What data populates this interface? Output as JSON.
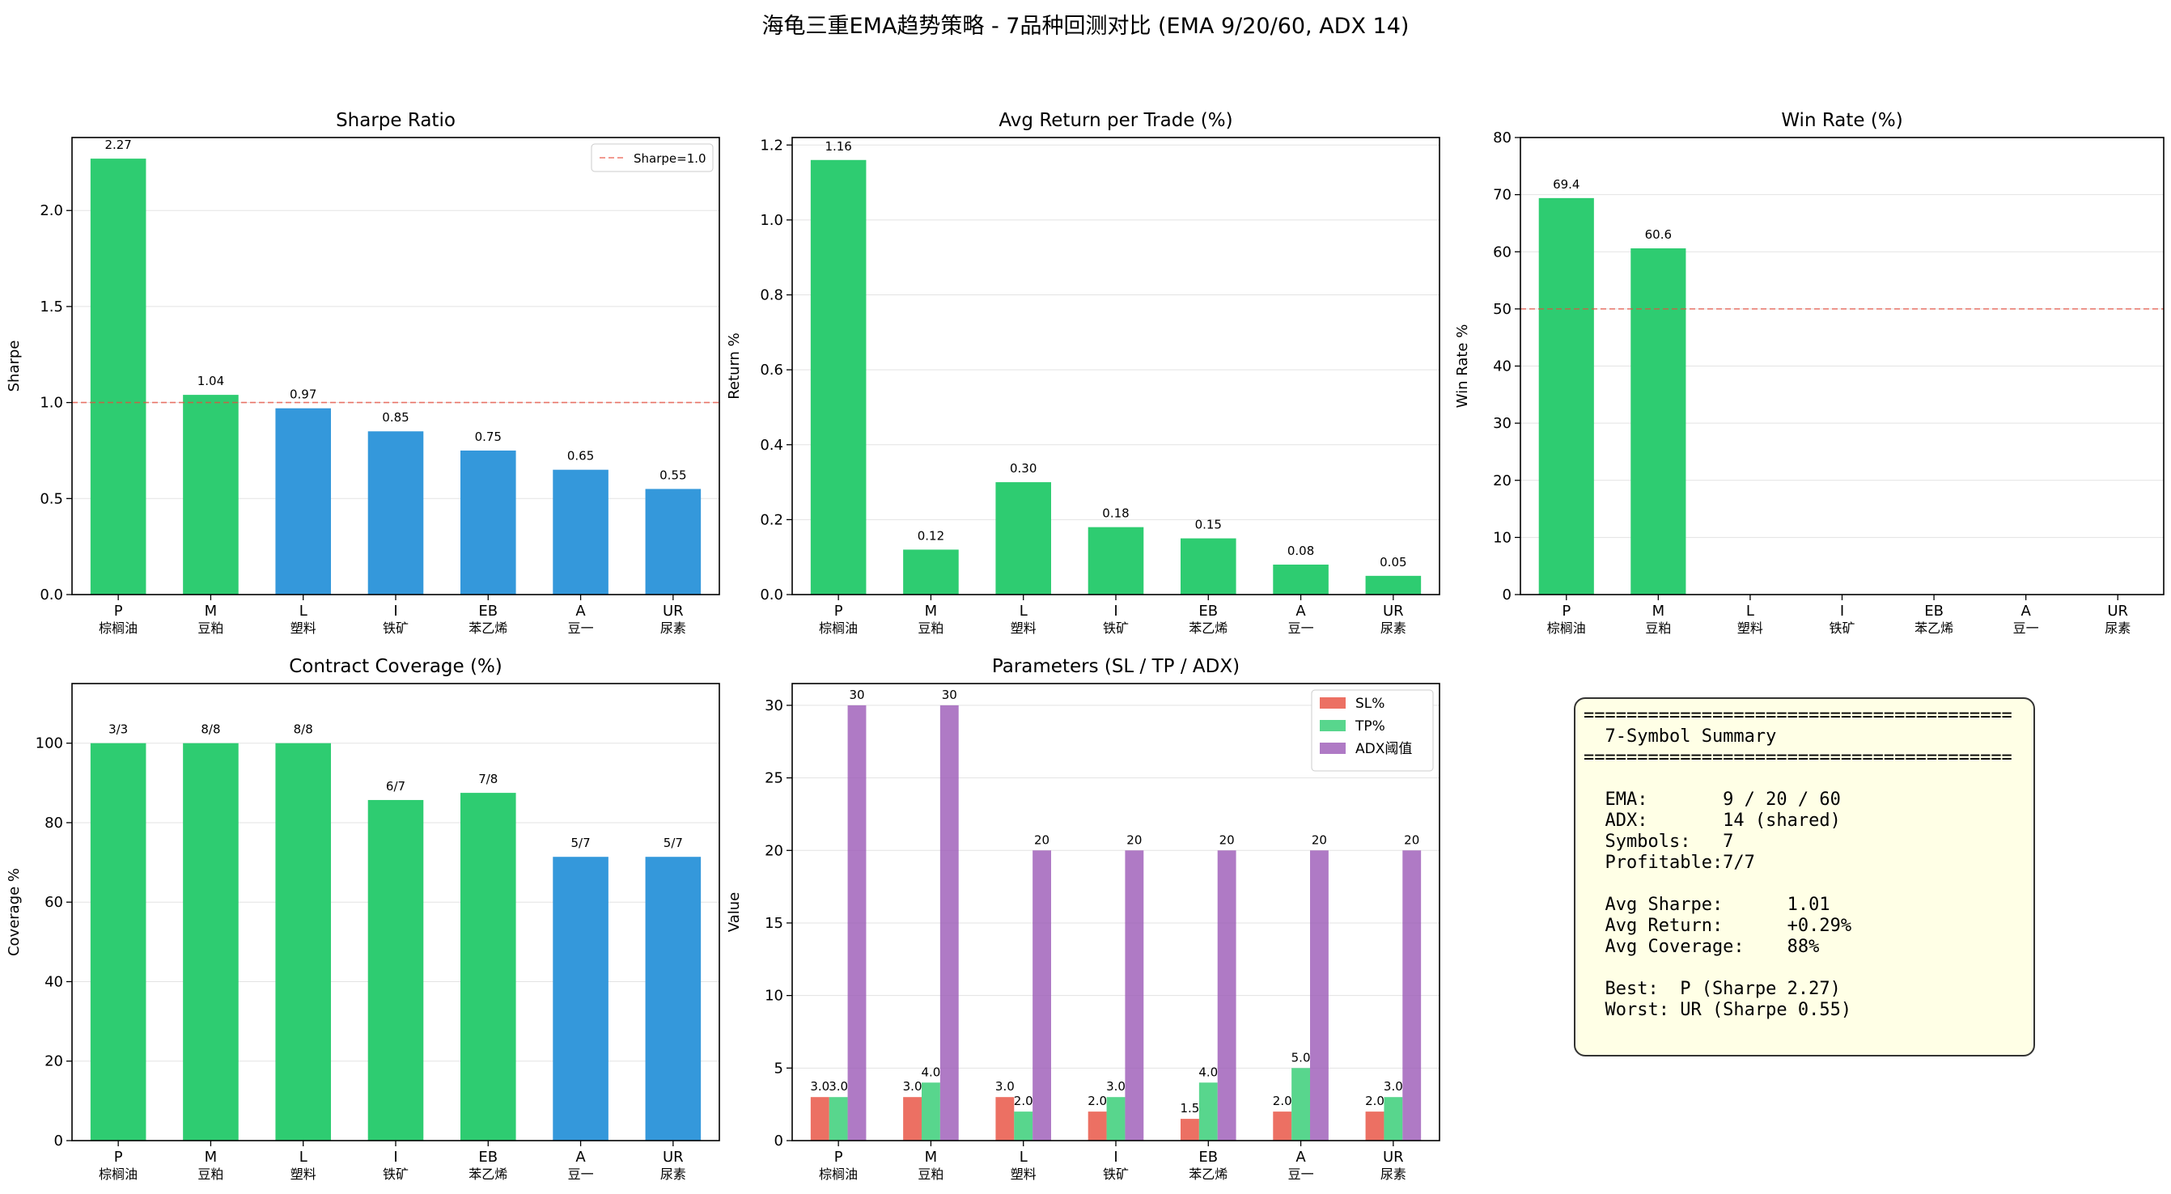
{
  "suptitle": "海龟三重EMA趋势策略 - 7品种回测对比  (EMA 9/20/60, ADX 14)",
  "symbols": [
    {
      "code": "P",
      "name": "棕榈油"
    },
    {
      "code": "M",
      "name": "豆粕"
    },
    {
      "code": "L",
      "name": "塑料"
    },
    {
      "code": "I",
      "name": "铁矿"
    },
    {
      "code": "EB",
      "name": "苯乙烯"
    },
    {
      "code": "A",
      "name": "豆一"
    },
    {
      "code": "UR",
      "name": "尿素"
    }
  ],
  "colors": {
    "green": "#2ecc71",
    "blue": "#3498db",
    "sl": "#e74c3c",
    "tp": "#2ecc71",
    "adx": "#9b59b6",
    "ref": "#e74c3c"
  },
  "chart_data": [
    {
      "id": "sharpe",
      "type": "bar",
      "title": "Sharpe Ratio",
      "xlabel": "",
      "ylabel": "Sharpe",
      "categories": [
        "P",
        "M",
        "L",
        "I",
        "EB",
        "A",
        "UR"
      ],
      "values": [
        2.27,
        1.04,
        0.97,
        0.85,
        0.75,
        0.65,
        0.55
      ],
      "labels": [
        "2.27",
        "1.04",
        "0.97",
        "0.85",
        "0.75",
        "0.65",
        "0.55"
      ],
      "bar_colors": [
        "green",
        "green",
        "blue",
        "blue",
        "blue",
        "blue",
        "blue"
      ],
      "ylim": [
        0,
        2.38
      ],
      "yticks": [
        0,
        0.5,
        1.0,
        1.5,
        2.0
      ],
      "ytick_labels": [
        "0.0",
        "0.5",
        "1.0",
        "1.5",
        "2.0"
      ],
      "refline": 1.0,
      "legend": [
        {
          "label": "Sharpe=1.0",
          "kind": "line"
        }
      ],
      "legend_position": "top-right",
      "grid": "y"
    },
    {
      "id": "avgret",
      "type": "bar",
      "title": "Avg Return per Trade (%)",
      "xlabel": "",
      "ylabel": "Return %",
      "categories": [
        "P",
        "M",
        "L",
        "I",
        "EB",
        "A",
        "UR"
      ],
      "values": [
        1.16,
        0.12,
        0.3,
        0.18,
        0.15,
        0.08,
        0.05
      ],
      "labels": [
        "1.16",
        "0.12",
        "0.30",
        "0.18",
        "0.15",
        "0.08",
        "0.05"
      ],
      "bar_colors": [
        "green",
        "green",
        "green",
        "green",
        "green",
        "green",
        "green"
      ],
      "ylim": [
        0,
        1.22
      ],
      "yticks": [
        0,
        0.2,
        0.4,
        0.6,
        0.8,
        1.0,
        1.2
      ],
      "ytick_labels": [
        "0.0",
        "0.2",
        "0.4",
        "0.6",
        "0.8",
        "1.0",
        "1.2"
      ],
      "grid": "y"
    },
    {
      "id": "winrate",
      "type": "bar",
      "title": "Win Rate (%)",
      "xlabel": "",
      "ylabel": "Win Rate %",
      "categories": [
        "P",
        "M",
        "L",
        "I",
        "EB",
        "A",
        "UR"
      ],
      "values": [
        69.4,
        60.6,
        0,
        0,
        0,
        0,
        0
      ],
      "labels": [
        "69.4",
        "60.6",
        "",
        "",
        "",
        "",
        ""
      ],
      "bar_colors": [
        "green",
        "green",
        "green",
        "green",
        "green",
        "green",
        "green"
      ],
      "ylim": [
        0,
        80
      ],
      "yticks": [
        0,
        10,
        20,
        30,
        40,
        50,
        60,
        70,
        80
      ],
      "ytick_labels": [
        "0",
        "10",
        "20",
        "30",
        "40",
        "50",
        "60",
        "70",
        "80"
      ],
      "refline": 50,
      "grid": "y"
    },
    {
      "id": "coverage",
      "type": "bar",
      "title": "Contract Coverage (%)",
      "xlabel": "",
      "ylabel": "Coverage %",
      "categories": [
        "P",
        "M",
        "L",
        "I",
        "EB",
        "A",
        "UR"
      ],
      "values": [
        100,
        100,
        100,
        85.7,
        87.5,
        71.4,
        71.4
      ],
      "labels": [
        "3/3",
        "8/8",
        "8/8",
        "6/7",
        "7/8",
        "5/7",
        "5/7"
      ],
      "bar_colors": [
        "green",
        "green",
        "green",
        "green",
        "green",
        "blue",
        "blue"
      ],
      "ylim": [
        0,
        115
      ],
      "yticks": [
        0,
        20,
        40,
        60,
        80,
        100
      ],
      "ytick_labels": [
        "0",
        "20",
        "40",
        "60",
        "80",
        "100"
      ],
      "grid": "y"
    },
    {
      "id": "params",
      "type": "bar",
      "title": "Parameters (SL / TP / ADX)",
      "xlabel": "",
      "ylabel": "Value",
      "categories": [
        "P",
        "M",
        "L",
        "I",
        "EB",
        "A",
        "UR"
      ],
      "series": [
        {
          "name": "SL%",
          "color": "sl",
          "values": [
            3.0,
            3.0,
            3.0,
            2.0,
            1.5,
            2.0,
            2.0
          ],
          "labels": [
            "3.0",
            "3.0",
            "3.0",
            "2.0",
            "1.5",
            "2.0",
            "2.0"
          ]
        },
        {
          "name": "TP%",
          "color": "tp",
          "values": [
            3.0,
            4.0,
            2.0,
            3.0,
            4.0,
            5.0,
            3.0
          ],
          "labels": [
            "3.0",
            "4.0",
            "2.0",
            "3.0",
            "4.0",
            "5.0",
            "3.0"
          ]
        },
        {
          "name": "ADX阈值",
          "color": "adx",
          "values": [
            30,
            30,
            20,
            20,
            20,
            20,
            20
          ],
          "labels": [
            "30",
            "30",
            "20",
            "20",
            "20",
            "20",
            "20"
          ]
        }
      ],
      "ylim": [
        0,
        31.5
      ],
      "yticks": [
        0,
        5,
        10,
        15,
        20,
        25,
        30
      ],
      "ytick_labels": [
        "0",
        "5",
        "10",
        "15",
        "20",
        "25",
        "30"
      ],
      "legend_position": "top-right",
      "grid": "y"
    }
  ],
  "summary": {
    "lines": [
      "========================================",
      "  7-Symbol Summary",
      "========================================",
      "",
      "  EMA:       9 / 20 / 60",
      "  ADX:       14 (shared)",
      "  Symbols:   7",
      "  Profitable:7/7",
      "",
      "  Avg Sharpe:      1.01",
      "  Avg Return:      +0.29%",
      "  Avg Coverage:    88%",
      "",
      "  Best:  P (Sharpe 2.27)",
      "  Worst: UR (Sharpe 0.55)"
    ]
  }
}
